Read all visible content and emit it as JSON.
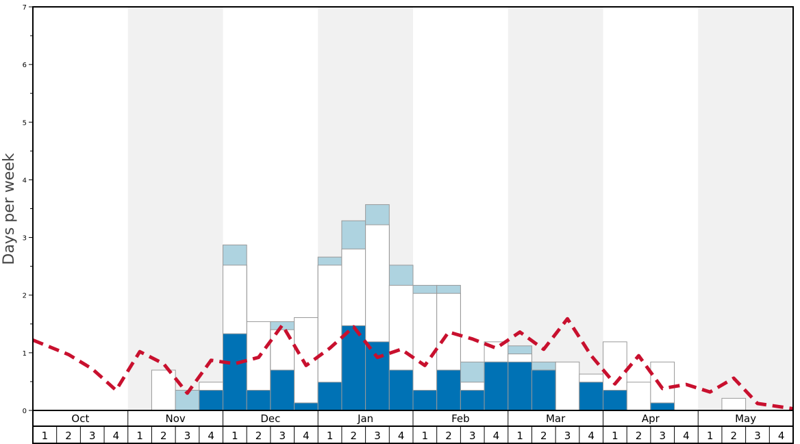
{
  "chart_data": {
    "type": "bar",
    "ylabel": "Days per week",
    "ylim": [
      0,
      7
    ],
    "y_ticks": [
      "0",
      "1",
      "2",
      "3",
      "4",
      "5",
      "6",
      "7"
    ],
    "grid": false,
    "months": [
      "Oct",
      "Nov",
      "Dec",
      "Jan",
      "Feb",
      "Mar",
      "Apr",
      "May"
    ],
    "week_labels": [
      "1",
      "2",
      "3",
      "4"
    ],
    "colors": {
      "dark_bar": "#0072b5",
      "light_bar": "#aed3e0",
      "outline_bar": "#ffffff",
      "line": "#c8102e",
      "band": "#f1f1f1"
    },
    "series": [
      {
        "key": "dark",
        "values": [
          0,
          0,
          0,
          0,
          0,
          0,
          0,
          0.35,
          1.33,
          0.35,
          0.7,
          0.13,
          0.49,
          1.47,
          1.19,
          0.7,
          0.35,
          0.7,
          0.35,
          0.84,
          0.84,
          0.7,
          0,
          0.49,
          0.35,
          0,
          0.13,
          0,
          0,
          0,
          0,
          0
        ]
      },
      {
        "key": "white",
        "values": [
          0,
          0,
          0,
          0,
          0,
          0.7,
          0,
          0.49,
          2.52,
          1.54,
          1.4,
          1.61,
          2.52,
          2.8,
          3.22,
          2.17,
          2.03,
          2.03,
          0.49,
          1.19,
          0.98,
          0.7,
          0.84,
          0.63,
          1.19,
          0.49,
          0.84,
          0,
          0,
          0.21,
          0,
          0
        ]
      },
      {
        "key": "light",
        "values": [
          0,
          0,
          0,
          0,
          0,
          0,
          0.35,
          0.35,
          2.87,
          0.35,
          1.54,
          0.13,
          2.66,
          3.29,
          3.57,
          2.52,
          2.17,
          2.17,
          0.84,
          0.84,
          1.12,
          0.84,
          0,
          0.49,
          0.35,
          0,
          0.13,
          0,
          0,
          0,
          0,
          0
        ]
      },
      {
        "key": "line",
        "values": [
          1.22,
          0.97,
          0.72,
          0.35,
          1.02,
          0.81,
          0.3,
          0.87,
          0.81,
          0.92,
          1.48,
          0.78,
          1.08,
          1.45,
          0.92,
          1.06,
          0.78,
          1.36,
          1.24,
          1.08,
          1.36,
          1.06,
          1.59,
          0.95,
          0.46,
          0.95,
          0.38,
          0.45,
          0.32,
          0.56,
          0.12,
          0.03
        ]
      }
    ]
  }
}
